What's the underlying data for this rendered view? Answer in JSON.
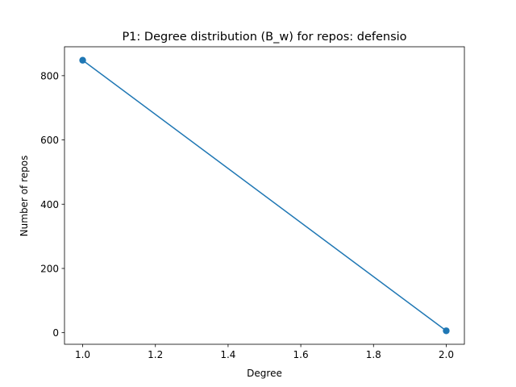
{
  "chart_data": {
    "type": "line",
    "title": "P1: Degree distribution (B_w) for repos: defensio",
    "xlabel": "Degree",
    "ylabel": "Number of repos",
    "x": [
      1.0,
      2.0
    ],
    "series": [
      {
        "values": [
          848,
          6
        ],
        "color": "#1f77b4"
      }
    ],
    "xlim": [
      0.95,
      2.05
    ],
    "ylim": [
      -36,
      890
    ],
    "xticks": [
      1.0,
      1.2,
      1.4,
      1.6,
      1.8,
      2.0
    ],
    "xtick_labels": [
      "1.0",
      "1.2",
      "1.4",
      "1.6",
      "1.8",
      "2.0"
    ],
    "yticks": [
      0,
      200,
      400,
      600,
      800
    ],
    "ytick_labels": [
      "0",
      "200",
      "400",
      "600",
      "800"
    ],
    "grid": false,
    "legend": "none"
  }
}
